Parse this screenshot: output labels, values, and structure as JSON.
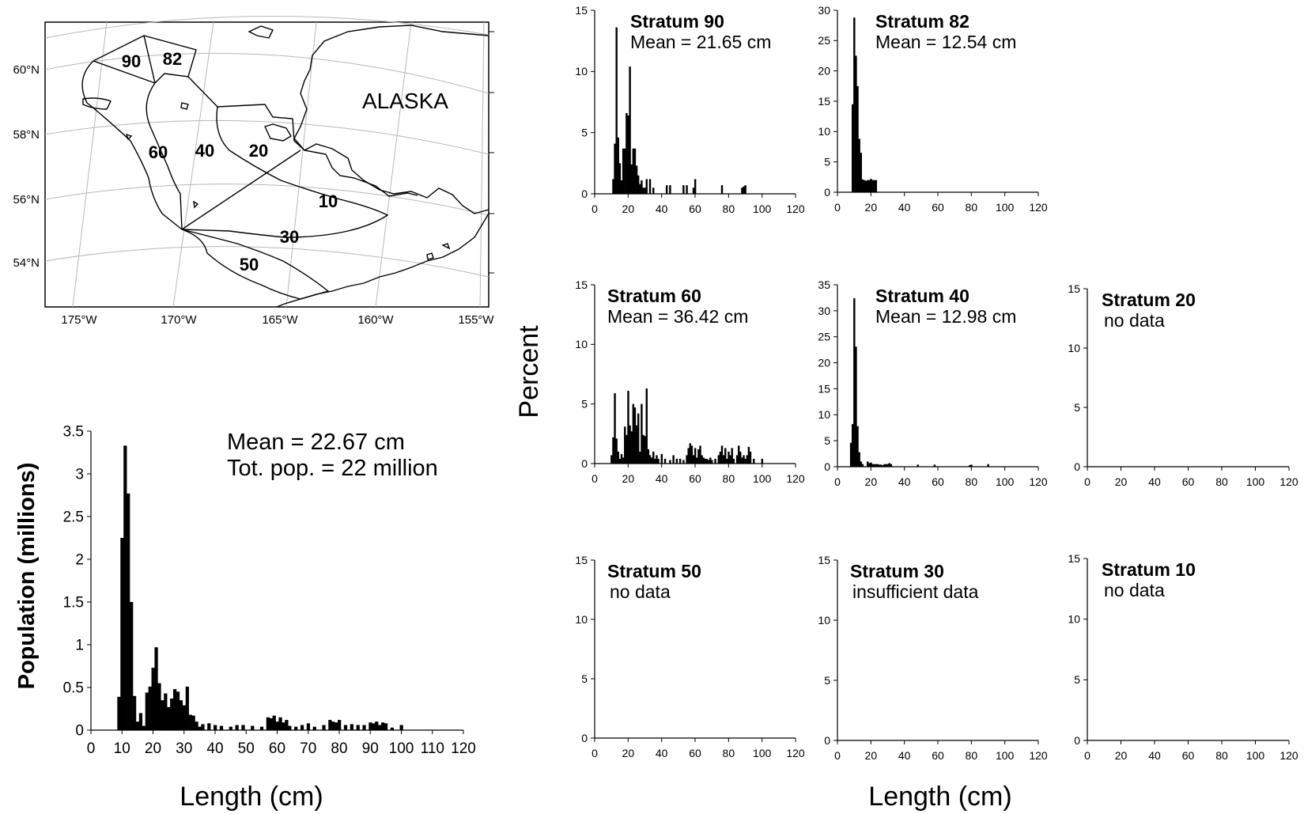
{
  "map": {
    "region_label": "ALASKA",
    "lat_labels": [
      "60°N",
      "58°N",
      "56°N",
      "54°N"
    ],
    "lon_labels": [
      "175°W",
      "170°W",
      "165°W",
      "160°W",
      "155°W"
    ],
    "strata_labels": [
      "90",
      "82",
      "60",
      "40",
      "20",
      "10",
      "30",
      "50"
    ]
  },
  "main_chart": {
    "stats": [
      "Mean = 22.67 cm",
      "Tot. pop. = 22 million"
    ],
    "ylabel": "Population (millions)",
    "xlabel": "Length (cm)",
    "xticks": [
      "0",
      "10",
      "20",
      "30",
      "40",
      "50",
      "60",
      "70",
      "80",
      "90",
      "100",
      "110",
      "120"
    ],
    "yticks": [
      "0",
      "0.5",
      "1",
      "1.5",
      "2",
      "2.5",
      "3",
      "3.5"
    ]
  },
  "panels": {
    "ylabel": "Percent",
    "xlabel": "Length (cm)",
    "xticks": [
      "0",
      "20",
      "40",
      "60",
      "80",
      "100",
      "120"
    ]
  },
  "chart_data": [
    {
      "type": "bar",
      "ylabel": "Population (millions)",
      "xlabel": "Length (cm)",
      "xlim": [
        0,
        120
      ],
      "ylim": [
        0,
        3.5
      ],
      "x": [
        9,
        10,
        11,
        12,
        13,
        14,
        15,
        16,
        17,
        18,
        19,
        20,
        21,
        22,
        23,
        24,
        25,
        26,
        27,
        28,
        29,
        30,
        31,
        32,
        33,
        34,
        35,
        36,
        38,
        40,
        42,
        45,
        47,
        49,
        52,
        55,
        57,
        58,
        59,
        60,
        61,
        62,
        63,
        64,
        66,
        68,
        70,
        72,
        75,
        77,
        78,
        79,
        80,
        82,
        84,
        86,
        88,
        90,
        91,
        92,
        93,
        94,
        95,
        97,
        100
      ],
      "values": [
        0.39,
        2.25,
        3.33,
        2.77,
        1.5,
        0.4,
        0.1,
        0.2,
        0.05,
        0.44,
        0.51,
        0.73,
        0.97,
        0.55,
        0.35,
        0.43,
        0.27,
        0.37,
        0.48,
        0.45,
        0.35,
        0.29,
        0.51,
        0.18,
        0.17,
        0.1,
        0.04,
        0.07,
        0.08,
        0.06,
        0.05,
        0.04,
        0.06,
        0.06,
        0.05,
        0.04,
        0.15,
        0.14,
        0.17,
        0.1,
        0.15,
        0.09,
        0.12,
        0.05,
        0.04,
        0.06,
        0.08,
        0.04,
        0.06,
        0.12,
        0.1,
        0.09,
        0.12,
        0.06,
        0.07,
        0.06,
        0.06,
        0.09,
        0.08,
        0.1,
        0.06,
        0.09,
        0.08,
        0.03,
        0.06
      ],
      "bar_width": 1
    },
    {
      "type": "bar",
      "title": "Stratum 90",
      "subtitle": "Mean = 21.65 cm",
      "xlim": [
        0,
        120
      ],
      "ylim": [
        0,
        15
      ],
      "yticks": [
        0,
        5,
        10,
        15
      ],
      "bar_width": 1,
      "x": [
        11,
        12,
        13,
        14,
        15,
        16,
        17,
        18,
        19,
        20,
        21,
        22,
        23,
        24,
        25,
        26,
        27,
        28,
        29,
        30,
        31,
        33,
        35,
        43,
        45,
        53,
        55,
        59,
        60,
        76,
        88,
        89,
        90
      ],
      "values": [
        1.2,
        4.1,
        13.6,
        4.6,
        2.5,
        1.1,
        3.7,
        3.7,
        6.6,
        6.4,
        10.4,
        2.4,
        3.7,
        3.7,
        2.3,
        1.5,
        0.8,
        1.1,
        0.5,
        0.5,
        1.2,
        1.2,
        0.5,
        0.7,
        0.7,
        0.7,
        0.7,
        0.5,
        1.2,
        0.7,
        0.5,
        0.6,
        0.7
      ]
    },
    {
      "type": "bar",
      "title": "Stratum 82",
      "subtitle": "Mean = 12.54 cm",
      "xlim": [
        0,
        120
      ],
      "ylim": [
        0,
        30
      ],
      "yticks": [
        0,
        5,
        10,
        15,
        20,
        25,
        30
      ],
      "bar_width": 1,
      "x": [
        9,
        10,
        11,
        12,
        13,
        14,
        15,
        16,
        17,
        18,
        19,
        20,
        21,
        22,
        23
      ],
      "values": [
        14.5,
        28.8,
        22.5,
        17.5,
        8.8,
        6.5,
        2.1,
        2.0,
        1.9,
        2.0,
        2.0,
        2.2,
        2.0,
        2.0,
        2.0
      ]
    },
    {
      "type": "bar",
      "title": "Stratum 60",
      "subtitle": "Mean = 36.42 cm",
      "xlim": [
        0,
        120
      ],
      "ylim": [
        0,
        15
      ],
      "yticks": [
        0,
        5,
        10,
        15
      ],
      "bar_width": 1,
      "x": [
        10,
        11,
        12,
        13,
        14,
        15,
        16,
        17,
        18,
        19,
        20,
        21,
        22,
        23,
        24,
        25,
        26,
        27,
        28,
        29,
        30,
        31,
        32,
        33,
        34,
        35,
        36,
        37,
        38,
        40,
        42,
        45,
        47,
        49,
        51,
        53,
        55,
        56,
        57,
        58,
        59,
        60,
        61,
        62,
        63,
        64,
        65,
        66,
        67,
        68,
        69,
        70,
        72,
        74,
        75,
        76,
        77,
        78,
        79,
        80,
        81,
        82,
        83,
        85,
        86,
        87,
        88,
        89,
        90,
        91,
        92,
        93,
        95,
        100
      ],
      "values": [
        0.7,
        2.2,
        5.9,
        2.1,
        1.0,
        0.4,
        0.8,
        0.5,
        3.1,
        2.4,
        6.1,
        3.2,
        2.7,
        5.0,
        4.7,
        3.2,
        4.2,
        1.0,
        5.0,
        2.4,
        2.3,
        6.3,
        1.2,
        0.7,
        0.5,
        1.0,
        0.4,
        0.7,
        0.4,
        0.8,
        0.4,
        0.3,
        0.7,
        0.4,
        0.4,
        0.3,
        0.7,
        1.3,
        1.7,
        1.5,
        0.7,
        1.3,
        0.5,
        1.2,
        1.5,
        0.7,
        0.5,
        0.4,
        0.4,
        0.3,
        0.5,
        0.3,
        0.4,
        0.7,
        1.0,
        1.5,
        0.7,
        1.3,
        0.4,
        1.0,
        0.7,
        1.3,
        0.4,
        0.7,
        1.5,
        1.0,
        0.5,
        0.7,
        0.4,
        0.7,
        1.4,
        1.0,
        0.4,
        0.4
      ]
    },
    {
      "type": "bar",
      "title": "Stratum 40",
      "subtitle": "Mean = 12.98 cm",
      "xlim": [
        0,
        120
      ],
      "ylim": [
        0,
        35
      ],
      "yticks": [
        0,
        5,
        10,
        15,
        20,
        25,
        30,
        35
      ],
      "bar_width": 1,
      "x": [
        8,
        9,
        10,
        11,
        12,
        13,
        14,
        15,
        18,
        19,
        20,
        21,
        22,
        23,
        24,
        25,
        26,
        27,
        28,
        29,
        30,
        31,
        32,
        48,
        58,
        79,
        80,
        90
      ],
      "values": [
        4.6,
        8.2,
        32.4,
        23.1,
        7.8,
        2.8,
        1.0,
        0.5,
        1.0,
        0.7,
        0.8,
        0.5,
        0.5,
        0.5,
        0.5,
        0.4,
        0.4,
        0.3,
        0.5,
        0.5,
        0.5,
        0.7,
        0.5,
        0.4,
        0.4,
        0.3,
        0.4,
        0.5
      ]
    },
    {
      "type": "bar",
      "title": "Stratum 20",
      "subtitle": "no data",
      "xlim": [
        0,
        120
      ],
      "ylim": [
        0,
        15
      ],
      "yticks": [
        0,
        5,
        10,
        15
      ],
      "x": [],
      "values": []
    },
    {
      "type": "bar",
      "title": "Stratum 50",
      "subtitle": "no data",
      "xlim": [
        0,
        120
      ],
      "ylim": [
        0,
        15
      ],
      "yticks": [
        0,
        5,
        10,
        15
      ],
      "x": [],
      "values": []
    },
    {
      "type": "bar",
      "title": "Stratum 30",
      "subtitle": "insufficient data",
      "xlim": [
        0,
        120
      ],
      "ylim": [
        0,
        15
      ],
      "yticks": [
        0,
        5,
        10,
        15
      ],
      "x": [],
      "values": []
    },
    {
      "type": "bar",
      "title": "Stratum 10",
      "subtitle": "no data",
      "xlim": [
        0,
        120
      ],
      "ylim": [
        0,
        15
      ],
      "yticks": [
        0,
        5,
        10,
        15
      ],
      "x": [],
      "values": []
    }
  ]
}
